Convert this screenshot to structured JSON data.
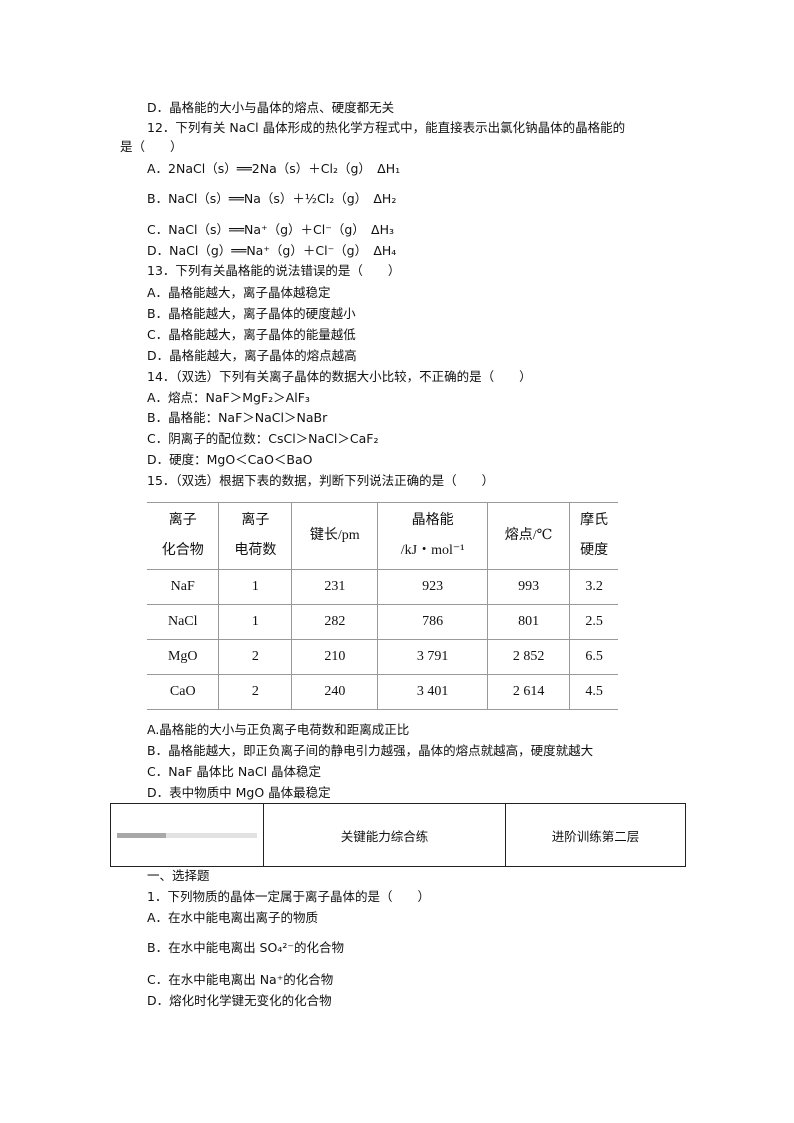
{
  "q11": {
    "d": "D．晶格能的大小与晶体的熔点、硬度都无关"
  },
  "q12": {
    "stem1": "12．下列有关 NaCl 晶体形成的热化学方程式中，能直接表示出氯化钠晶体的晶格能的",
    "stem2": "是（　　）",
    "options": [
      "A．2NaCl（s）══2Na（s）＋Cl₂（g）　ΔH₁",
      "B．NaCl（s）══Na（s）＋½Cl₂（g）　ΔH₂",
      "C．NaCl（s）══Na⁺（g）＋Cl⁻（g）　ΔH₃",
      "D．NaCl（g）══Na⁺（g）＋Cl⁻（g）　ΔH₄"
    ]
  },
  "q13": {
    "stem": "13．下列有关晶格能的说法错误的是（　　）",
    "options": [
      "A．晶格能越大，离子晶体越稳定",
      "B．晶格能越大，离子晶体的硬度越小",
      "C．晶格能越大，离子晶体的能量越低",
      "D．晶格能越大，离子晶体的熔点越高"
    ]
  },
  "q14": {
    "stem": "14．（双选）下列有关离子晶体的数据大小比较，不正确的是（　　）",
    "options": [
      "A．熔点：NaF＞MgF₂＞AlF₃",
      "B．晶格能：NaF＞NaCl＞NaBr",
      "C．阴离子的配位数：CsCl＞NaCl＞CaF₂",
      "D．硬度：MgO＜CaO＜BaO"
    ]
  },
  "q15": {
    "stem": "15．（双选）根据下表的数据，判断下列说法正确的是（　　）",
    "table": {
      "headers": [
        [
          "离子",
          "化合物"
        ],
        [
          "离子",
          "电荷数"
        ],
        [
          "键长/pm"
        ],
        [
          "晶格能",
          "/kJ・mol⁻¹"
        ],
        [
          "熔点/℃"
        ],
        [
          "摩氏",
          "硬度"
        ]
      ],
      "rows": [
        [
          "NaF",
          "1",
          "231",
          "923",
          "993",
          "3.2"
        ],
        [
          "NaCl",
          "1",
          "282",
          "786",
          "801",
          "2.5"
        ],
        [
          "MgO",
          "2",
          "210",
          "3 791",
          "2 852",
          "6.5"
        ],
        [
          "CaO",
          "2",
          "240",
          "3 401",
          "2 614",
          "4.5"
        ]
      ]
    },
    "options": [
      "A.晶格能的大小与正负离子电荷数和距离成正比",
      "B．晶格能越大，即正负离子间的静电引力越强，晶体的熔点就越高，硬度就越大",
      "C．NaF 晶体比 NaCl 晶体稳定",
      "D．表中物质中 MgO 晶体最稳定"
    ]
  },
  "banner": {
    "title": "关键能力综合练",
    "level": "进阶训练第二层",
    "progress": 0.35
  },
  "section": {
    "title": "一、选择题",
    "q1": {
      "stem": "1．下列物质的晶体一定属于离子晶体的是（　　）",
      "options": [
        "A．在水中能电离出离子的物质",
        "B．在水中能电离出 SO₄²⁻的化合物",
        "C．在水中能电离出 Na⁺的化合物",
        "D．熔化时化学键无变化的化合物"
      ]
    }
  }
}
